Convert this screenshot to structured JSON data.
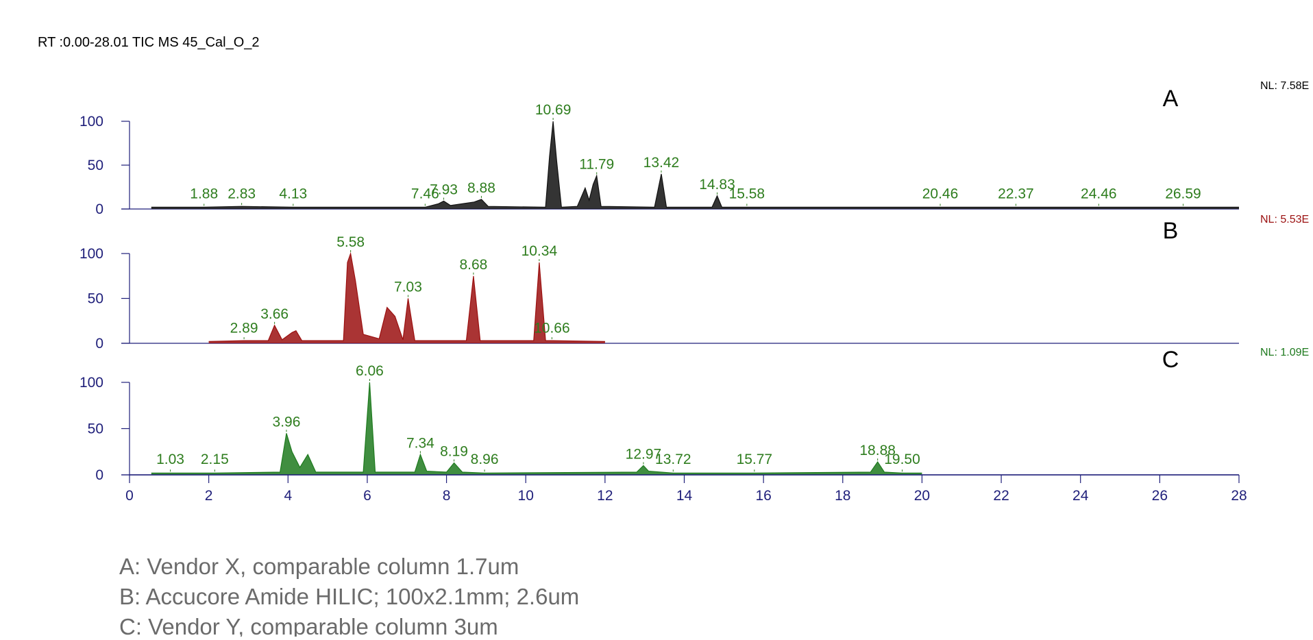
{
  "title": "RT :0.00-28.01 TIC MS 45_Cal_O_2",
  "chart_data": [
    {
      "type": "line",
      "panel_label": "A",
      "nl": "NL: 7.58E",
      "color": "#111111",
      "xlim": [
        0,
        28
      ],
      "ylim": [
        0,
        100
      ],
      "yticks": [
        0,
        50,
        100
      ],
      "x": [
        0.55,
        1.88,
        2.83,
        4.13,
        7.46,
        7.8,
        7.93,
        8.1,
        8.7,
        8.88,
        9.05,
        10.5,
        10.6,
        10.69,
        10.78,
        10.9,
        11.3,
        11.5,
        11.6,
        11.7,
        11.79,
        11.9,
        13.25,
        13.42,
        13.55,
        14.7,
        14.83,
        14.95,
        15.58,
        20.46,
        22.37,
        24.46,
        26.59,
        28
      ],
      "values": [
        2,
        2,
        3,
        2,
        2,
        6,
        9,
        4,
        8,
        11,
        3,
        2,
        60,
        100,
        55,
        2,
        3,
        24,
        10,
        28,
        38,
        3,
        2,
        40,
        2,
        2,
        15,
        2,
        2,
        2,
        2,
        2,
        2,
        2
      ],
      "peaks": [
        {
          "x": 1.88,
          "y": 2,
          "label": "1.88"
        },
        {
          "x": 2.83,
          "y": 3,
          "label": "2.83"
        },
        {
          "x": 4.13,
          "y": 2,
          "label": "4.13"
        },
        {
          "x": 7.46,
          "y": 2,
          "label": "7.46"
        },
        {
          "x": 7.93,
          "y": 9,
          "label": "7.93"
        },
        {
          "x": 8.88,
          "y": 11,
          "label": "8.88"
        },
        {
          "x": 10.69,
          "y": 100,
          "label": "10.69"
        },
        {
          "x": 11.79,
          "y": 38,
          "label": "11.79"
        },
        {
          "x": 13.42,
          "y": 40,
          "label": "13.42"
        },
        {
          "x": 14.83,
          "y": 15,
          "label": "14.83"
        },
        {
          "x": 15.58,
          "y": 2,
          "label": "15.58"
        },
        {
          "x": 20.46,
          "y": 2,
          "label": "20.46"
        },
        {
          "x": 22.37,
          "y": 2,
          "label": "22.37"
        },
        {
          "x": 24.46,
          "y": 2,
          "label": "24.46"
        },
        {
          "x": 26.59,
          "y": 2,
          "label": "26.59"
        }
      ]
    },
    {
      "type": "line",
      "panel_label": "B",
      "nl": "NL: 5.53E",
      "color": "#9b1010",
      "xlim": [
        0,
        28
      ],
      "ylim": [
        0,
        100
      ],
      "yticks": [
        0,
        50,
        100
      ],
      "x": [
        2.0,
        2.89,
        3.5,
        3.66,
        3.85,
        4.1,
        4.2,
        4.35,
        5.4,
        5.5,
        5.58,
        5.7,
        5.9,
        6.3,
        6.5,
        6.7,
        6.9,
        7.03,
        7.2,
        8.5,
        8.68,
        8.85,
        10.2,
        10.34,
        10.5,
        10.66,
        12.0
      ],
      "values": [
        2,
        3,
        3,
        20,
        4,
        12,
        14,
        3,
        3,
        90,
        100,
        70,
        10,
        5,
        40,
        30,
        4,
        50,
        3,
        3,
        75,
        3,
        3,
        90,
        3,
        3,
        2
      ],
      "peaks": [
        {
          "x": 2.89,
          "y": 3,
          "label": "2.89"
        },
        {
          "x": 3.66,
          "y": 20,
          "label": "3.66"
        },
        {
          "x": 5.58,
          "y": 100,
          "label": "5.58"
        },
        {
          "x": 7.03,
          "y": 50,
          "label": "7.03"
        },
        {
          "x": 8.68,
          "y": 75,
          "label": "8.68"
        },
        {
          "x": 10.34,
          "y": 90,
          "label": "10.34"
        },
        {
          "x": 10.66,
          "y": 3,
          "label": "10.66"
        }
      ]
    },
    {
      "type": "line",
      "panel_label": "C",
      "nl": "NL: 1.09E",
      "color": "#1e7a1e",
      "xlim": [
        0,
        28
      ],
      "ylim": [
        0,
        100
      ],
      "yticks": [
        0,
        50,
        100
      ],
      "xticks": [
        0,
        2,
        4,
        6,
        8,
        10,
        12,
        14,
        16,
        18,
        20,
        22,
        24,
        26,
        28
      ],
      "x": [
        0.55,
        1.03,
        2.15,
        3.8,
        3.96,
        4.1,
        4.3,
        4.5,
        4.7,
        5.9,
        6.06,
        6.2,
        7.2,
        7.34,
        7.5,
        8.0,
        8.19,
        8.4,
        8.96,
        12.8,
        12.97,
        13.1,
        13.72,
        15.77,
        18.7,
        18.88,
        19.05,
        19.5,
        20.0
      ],
      "values": [
        2,
        2,
        2,
        3,
        45,
        25,
        8,
        22,
        3,
        3,
        100,
        3,
        3,
        22,
        4,
        3,
        13,
        3,
        2,
        3,
        10,
        4,
        2,
        2,
        3,
        14,
        3,
        2,
        2
      ],
      "peaks": [
        {
          "x": 1.03,
          "y": 2,
          "label": "1.03"
        },
        {
          "x": 2.15,
          "y": 2,
          "label": "2.15"
        },
        {
          "x": 3.96,
          "y": 45,
          "label": "3.96"
        },
        {
          "x": 6.06,
          "y": 100,
          "label": "6.06"
        },
        {
          "x": 7.34,
          "y": 22,
          "label": "7.34"
        },
        {
          "x": 8.19,
          "y": 13,
          "label": "8.19"
        },
        {
          "x": 8.96,
          "y": 2,
          "label": "8.96"
        },
        {
          "x": 12.97,
          "y": 10,
          "label": "12.97"
        },
        {
          "x": 13.72,
          "y": 2,
          "label": "13.72"
        },
        {
          "x": 15.77,
          "y": 2,
          "label": "15.77"
        },
        {
          "x": 18.88,
          "y": 14,
          "label": "18.88"
        },
        {
          "x": 19.5,
          "y": 2,
          "label": "19.50"
        }
      ]
    }
  ],
  "notes": [
    "A: Vendor X, comparable column 1.7um",
    "B: Accucore Amide HILIC; 100x2.1mm; 2.6um",
    "C: Vendor Y, comparable column 3um"
  ]
}
